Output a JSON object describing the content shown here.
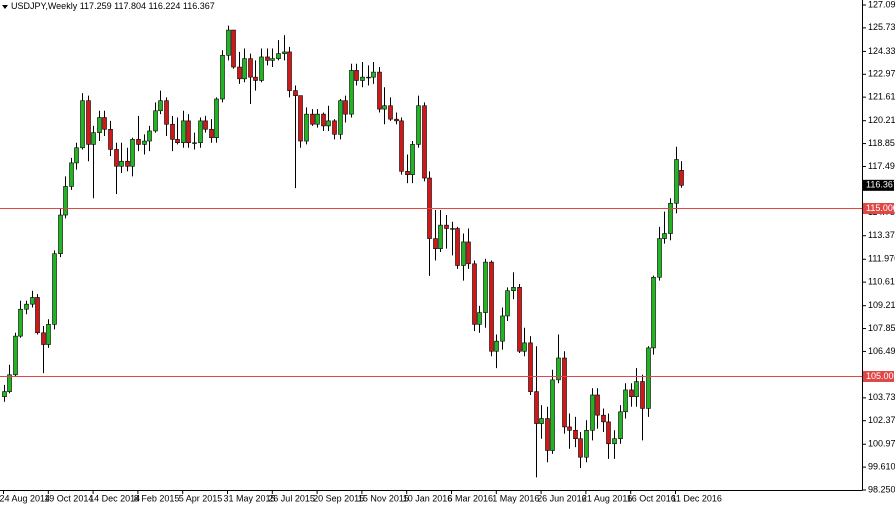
{
  "chart_data": {
    "type": "candlestick",
    "title": "USDJPY,Weekly",
    "categories": [
      "24 Aug 2014",
      null,
      null,
      null,
      null,
      null,
      null,
      null,
      "19 Oct 2014",
      null,
      null,
      null,
      null,
      null,
      null,
      null,
      "14 Dec 2014",
      null,
      null,
      null,
      null,
      null,
      null,
      null,
      "8 Feb 2015",
      null,
      null,
      null,
      null,
      null,
      null,
      null,
      "5 Apr 2015",
      null,
      null,
      null,
      null,
      null,
      null,
      null,
      "31 May 2015",
      null,
      null,
      null,
      null,
      null,
      null,
      null,
      "26 Jul 2015",
      null,
      null,
      null,
      null,
      null,
      null,
      null,
      "20 Sep 2015",
      null,
      null,
      null,
      null,
      null,
      null,
      null,
      "15 Nov 2015",
      null,
      null,
      null,
      null,
      null,
      null,
      null,
      "10 Jan 2016",
      null,
      null,
      null,
      null,
      null,
      null,
      null,
      "6 Mar 2016",
      null,
      null,
      null,
      null,
      null,
      null,
      null,
      "1 May 2016",
      null,
      null,
      null,
      null,
      null,
      null,
      null,
      "26 Jun 2016",
      null,
      null,
      null,
      null,
      null,
      null,
      null,
      "21 Aug 2016",
      null,
      null,
      null,
      null,
      null,
      null,
      null,
      "16 Oct 2016",
      null,
      null,
      null,
      null,
      null,
      null,
      null,
      "11 Dec 2016",
      null
    ],
    "open": [
      103.8,
      104.1,
      105.1,
      107.4,
      109.0,
      109.3,
      109.7,
      107.6,
      106.9,
      108.1,
      112.3,
      114.6,
      116.3,
      117.7,
      118.6,
      121.4,
      118.8,
      119.5,
      120.4,
      119.7,
      118.5,
      117.5,
      117.8,
      117.5,
      119.1,
      118.8,
      119.0,
      119.6,
      120.8,
      121.4,
      120.0,
      119.1,
      118.9,
      120.2,
      118.9,
      118.9,
      120.2,
      119.7,
      119.2,
      121.5,
      124.1,
      125.6,
      123.4,
      122.7,
      123.9,
      122.8,
      122.6,
      124.0,
      123.8,
      123.9,
      124.2,
      124.3,
      122.0,
      121.7,
      119.0,
      120.6,
      120.0,
      120.6,
      119.9,
      120.2,
      119.4,
      121.4,
      120.6,
      123.2,
      122.6,
      122.8,
      122.8,
      123.1,
      120.9,
      121.1,
      120.3,
      120.2,
      117.2,
      117.0,
      118.8,
      121.1,
      116.8,
      113.2,
      112.6,
      114.0,
      113.8,
      113.8,
      111.6,
      113.0,
      111.7,
      108.1,
      108.8,
      111.8,
      106.5,
      107.1,
      108.6,
      110.1,
      110.3,
      106.5,
      107.0,
      104.1,
      102.2,
      102.5,
      100.6,
      104.8,
      106.1,
      102.0,
      101.8,
      101.3,
      100.2,
      101.8,
      103.9,
      102.7,
      102.3,
      101.0,
      101.3,
      102.9,
      104.2,
      103.8,
      104.7,
      103.1,
      106.7,
      110.9,
      113.2,
      113.5,
      115.3,
      117.259
    ],
    "high": [
      104.5,
      105.7,
      107.6,
      109.5,
      109.5,
      110.1,
      109.9,
      108.0,
      108.4,
      112.5,
      115.0,
      116.9,
      118.0,
      118.9,
      121.85,
      121.7,
      119.9,
      120.8,
      120.8,
      120.2,
      118.9,
      118.9,
      118.6,
      119.2,
      120.5,
      119.4,
      119.9,
      121.3,
      122.0,
      121.6,
      120.5,
      120.4,
      120.8,
      120.6,
      119.5,
      120.4,
      120.5,
      120.3,
      121.6,
      124.4,
      125.86,
      125.6,
      124.3,
      124.5,
      124.2,
      123.8,
      124.5,
      124.5,
      124.5,
      125.0,
      125.3,
      124.6,
      122.3,
      121.7,
      121.0,
      120.9,
      120.9,
      120.7,
      121.1,
      120.3,
      121.5,
      121.7,
      123.6,
      123.6,
      123.7,
      123.5,
      123.7,
      123.4,
      122.2,
      121.6,
      120.7,
      120.4,
      118.2,
      119.0,
      121.7,
      121.3,
      117.2,
      114.9,
      114.9,
      114.6,
      114.2,
      113.9,
      113.5,
      113.8,
      111.9,
      109.2,
      112.0,
      111.9,
      107.5,
      109.1,
      110.3,
      111.2,
      110.5,
      107.9,
      107.4,
      106.8,
      103.3,
      103.2,
      105.4,
      107.5,
      106.5,
      102.8,
      102.6,
      101.7,
      102.4,
      104.3,
      104.3,
      103.1,
      102.8,
      101.8,
      103.3,
      104.6,
      104.6,
      105.5,
      105.1,
      106.8,
      111.0,
      113.9,
      114.8,
      115.6,
      118.66,
      117.804
    ],
    "low": [
      103.5,
      104.0,
      105.0,
      107.3,
      108.7,
      109.1,
      107.5,
      105.2,
      106.7,
      107.8,
      112.1,
      114.4,
      116.1,
      117.3,
      118.5,
      117.8,
      115.6,
      119.0,
      119.3,
      118.1,
      115.85,
      117.1,
      117.2,
      116.9,
      118.4,
      118.2,
      118.4,
      119.5,
      120.6,
      119.3,
      118.4,
      118.8,
      118.6,
      118.6,
      118.5,
      118.6,
      119.5,
      118.9,
      118.9,
      121.3,
      123.8,
      123.3,
      122.4,
      122.5,
      121.2,
      122.0,
      122.5,
      123.5,
      123.4,
      123.8,
      123.8,
      121.6,
      116.2,
      118.6,
      118.8,
      119.9,
      119.8,
      119.6,
      119.6,
      119.1,
      119.1,
      120.1,
      120.4,
      122.3,
      122.2,
      122.3,
      122.4,
      120.7,
      120.0,
      120.2,
      120.0,
      117.0,
      116.5,
      116.5,
      118.6,
      116.6,
      110.98,
      111.9,
      112.4,
      112.6,
      112.2,
      111.4,
      110.7,
      111.4,
      107.7,
      107.6,
      107.9,
      106.2,
      105.5,
      106.6,
      108.3,
      109.6,
      106.4,
      106.2,
      103.9,
      99.0,
      101.3,
      99.9,
      100.4,
      104.6,
      101.6,
      100.7,
      100.8,
      99.55,
      99.9,
      101.2,
      101.9,
      101.7,
      100.1,
      100.1,
      101.0,
      102.5,
      103.2,
      103.2,
      101.2,
      102.6,
      106.3,
      110.7,
      112.9,
      113.1,
      114.7,
      116.224
    ],
    "close": [
      104.1,
      105.1,
      107.4,
      109.0,
      109.3,
      109.7,
      107.6,
      106.9,
      108.1,
      112.3,
      114.6,
      116.3,
      117.7,
      118.6,
      121.4,
      118.8,
      119.5,
      120.4,
      119.7,
      118.5,
      117.5,
      117.8,
      117.5,
      119.1,
      118.8,
      119.0,
      119.6,
      120.8,
      121.4,
      120.0,
      119.1,
      118.9,
      120.2,
      118.9,
      118.9,
      120.2,
      119.7,
      119.2,
      121.5,
      124.1,
      125.6,
      123.4,
      122.7,
      123.9,
      122.8,
      122.6,
      124.0,
      123.8,
      123.9,
      124.2,
      124.3,
      122.0,
      121.7,
      119.0,
      120.6,
      120.0,
      120.6,
      119.9,
      120.2,
      119.4,
      121.4,
      120.6,
      123.2,
      122.6,
      122.8,
      122.8,
      123.1,
      120.9,
      121.1,
      120.3,
      120.2,
      117.2,
      117.0,
      118.8,
      121.1,
      116.8,
      113.2,
      112.6,
      114.0,
      113.8,
      113.8,
      111.6,
      113.0,
      111.7,
      108.1,
      108.8,
      111.8,
      106.5,
      107.1,
      108.6,
      110.1,
      110.3,
      106.5,
      107.0,
      104.1,
      102.2,
      102.5,
      100.6,
      104.8,
      106.1,
      102.0,
      101.8,
      101.3,
      100.2,
      101.8,
      103.9,
      102.7,
      102.3,
      101.0,
      101.3,
      102.9,
      104.2,
      103.8,
      104.7,
      103.1,
      106.7,
      110.9,
      113.2,
      113.5,
      115.3,
      117.9,
      116.367
    ],
    "up_color": "#22b422",
    "down_color": "#d01818",
    "ylim": [
      98.25,
      127.09
    ],
    "yticks": [
      {
        "value": 127.09,
        "label": "127.090"
      },
      {
        "value": 125.73,
        "label": "125.730"
      },
      {
        "value": 124.33,
        "label": "124.330"
      },
      {
        "value": 122.97,
        "label": "122.970"
      },
      {
        "value": 121.61,
        "label": "121.610"
      },
      {
        "value": 120.21,
        "label": "120.210"
      },
      {
        "value": 118.85,
        "label": "118.850"
      },
      {
        "value": 117.49,
        "label": "117.490"
      },
      {
        "value": 114.75,
        "label": "114.750"
      },
      {
        "value": 113.37,
        "label": "113.370"
      },
      {
        "value": 111.97,
        "label": "111.970"
      },
      {
        "value": 110.61,
        "label": "110.610"
      },
      {
        "value": 109.21,
        "label": "109.210"
      },
      {
        "value": 107.85,
        "label": "107.850"
      },
      {
        "value": 106.49,
        "label": "106.490"
      },
      {
        "value": 103.73,
        "label": "103.730"
      },
      {
        "value": 102.37,
        "label": "102.370"
      },
      {
        "value": 100.97,
        "label": "100.970"
      },
      {
        "value": 99.61,
        "label": "99.610"
      },
      {
        "value": 98.25,
        "label": "98.250"
      }
    ],
    "hlines": [
      {
        "value": 115,
        "label": "115.000"
      },
      {
        "value": 105,
        "label": "105.000"
      }
    ],
    "hline_color": "#e04848",
    "grid": false
  }
}
